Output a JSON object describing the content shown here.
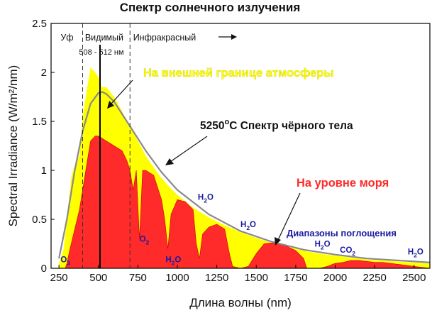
{
  "chart_data": {
    "type": "area",
    "title": "Спектр солнечного излучения",
    "xlabel": "Длина волны (nm)",
    "ylabel": "Spectral Irradiance (W/m²/nm)",
    "xlim": [
      200,
      2600
    ],
    "ylim": [
      0,
      2.5
    ],
    "xticks": [
      250,
      500,
      750,
      1000,
      1250,
      1500,
      1750,
      2000,
      2250,
      2500
    ],
    "yticks": [
      0,
      0.5,
      1,
      1.5,
      2,
      2.5
    ],
    "grid": false,
    "colors": {
      "top_of_atmosphere": "#ffff00",
      "sea_level": "#ff2a2a",
      "blackbody": "#8a8a8a",
      "absorption_labels": "#1a1aa0"
    },
    "series": [
      {
        "name": "На внешней границе атмосферы",
        "x": [
          250,
          280,
          300,
          330,
          350,
          380,
          400,
          420,
          450,
          480,
          500,
          520,
          550,
          600,
          650,
          700,
          750,
          800,
          850,
          900,
          950,
          1000,
          1100,
          1200,
          1300,
          1400,
          1500,
          1600,
          1700,
          1800,
          1900,
          2000,
          2100,
          2200,
          2300,
          2400,
          2500,
          2600
        ],
        "values": [
          0.05,
          0.2,
          0.5,
          0.95,
          1.05,
          1.15,
          1.55,
          1.75,
          2.05,
          2.0,
          1.95,
          1.85,
          1.85,
          1.75,
          1.6,
          1.45,
          1.3,
          1.15,
          1.03,
          0.92,
          0.83,
          0.75,
          0.62,
          0.52,
          0.44,
          0.37,
          0.31,
          0.26,
          0.22,
          0.18,
          0.15,
          0.13,
          0.11,
          0.09,
          0.08,
          0.07,
          0.06,
          0.05
        ]
      },
      {
        "name": "На уровне моря",
        "x": [
          290,
          300,
          320,
          350,
          380,
          400,
          420,
          450,
          480,
          500,
          550,
          600,
          650,
          680,
          700,
          720,
          740,
          760,
          780,
          800,
          850,
          900,
          920,
          940,
          960,
          1000,
          1050,
          1100,
          1120,
          1140,
          1160,
          1200,
          1250,
          1300,
          1330,
          1350,
          1400,
          1450,
          1500,
          1550,
          1600,
          1650,
          1700,
          1750,
          1800,
          1820,
          1850,
          1900,
          1950,
          2000,
          2050,
          2100,
          2150,
          2200,
          2250,
          2300,
          2350,
          2400,
          2450,
          2500,
          2550,
          2600
        ],
        "values": [
          0,
          0.05,
          0.2,
          0.4,
          0.6,
          0.8,
          1.0,
          1.3,
          1.35,
          1.35,
          1.3,
          1.25,
          1.2,
          1.1,
          1.0,
          0.8,
          1.0,
          0.3,
          1.0,
          1.0,
          0.95,
          0.7,
          0.5,
          0.2,
          0.55,
          0.7,
          0.68,
          0.6,
          0.25,
          0.1,
          0.35,
          0.42,
          0.45,
          0.4,
          0.15,
          0.02,
          0.0,
          0.02,
          0.15,
          0.25,
          0.26,
          0.25,
          0.22,
          0.18,
          0.1,
          0.0,
          0.0,
          0.0,
          0.02,
          0.05,
          0.06,
          0.08,
          0.08,
          0.07,
          0.06,
          0.06,
          0.05,
          0.04,
          0.03,
          0.02,
          0.01,
          0.0
        ]
      },
      {
        "name": "5250°C Спектр чёрного тела",
        "x": [
          250,
          300,
          350,
          400,
          450,
          500,
          525,
          550,
          600,
          700,
          800,
          900,
          1000,
          1200,
          1400,
          1600,
          1800,
          2000,
          2200,
          2400,
          2600
        ],
        "values": [
          0.1,
          0.5,
          1.0,
          1.4,
          1.68,
          1.79,
          1.8,
          1.78,
          1.7,
          1.45,
          1.2,
          0.98,
          0.8,
          0.55,
          0.38,
          0.27,
          0.19,
          0.14,
          0.1,
          0.08,
          0.06
        ]
      }
    ],
    "regions": [
      {
        "label": "Уф",
        "x_end": 400
      },
      {
        "label": "Видимый",
        "x_start": 400,
        "x_end": 700
      },
      {
        "label": "Инфракрасный",
        "x_start": 700
      }
    ],
    "peak_line": {
      "x": 510,
      "label": "508 - 512 нм"
    },
    "annotations": {
      "top_of_atmosphere": "На внешней границе атмосферы",
      "blackbody_main": "5250",
      "blackbody_deg": "o",
      "blackbody_rest": "C Спектр чёрного тела",
      "sea_level": "На уровне моря",
      "absorption_bands": "Диапазоны поглощения"
    },
    "absorption_labels": [
      {
        "text": "O",
        "sub": "3",
        "x": 260,
        "y": 0.06
      },
      {
        "text": "O",
        "sub": "2",
        "x": 760,
        "y": 0.27
      },
      {
        "text": "H",
        "sub": "2",
        "tail": "O",
        "x": 925,
        "y": 0.06
      },
      {
        "text": "H",
        "sub": "2",
        "tail": "O",
        "x": 1130,
        "y": 0.7
      },
      {
        "text": "H",
        "sub": "2",
        "tail": "O",
        "x": 1400,
        "y": 0.42
      },
      {
        "text": "H",
        "sub": "2",
        "tail": "O",
        "x": 1870,
        "y": 0.22
      },
      {
        "text": "CO",
        "sub": "2",
        "x": 2030,
        "y": 0.16
      },
      {
        "text": "H",
        "sub": "2",
        "tail": "O",
        "x": 2460,
        "y": 0.14
      }
    ]
  }
}
